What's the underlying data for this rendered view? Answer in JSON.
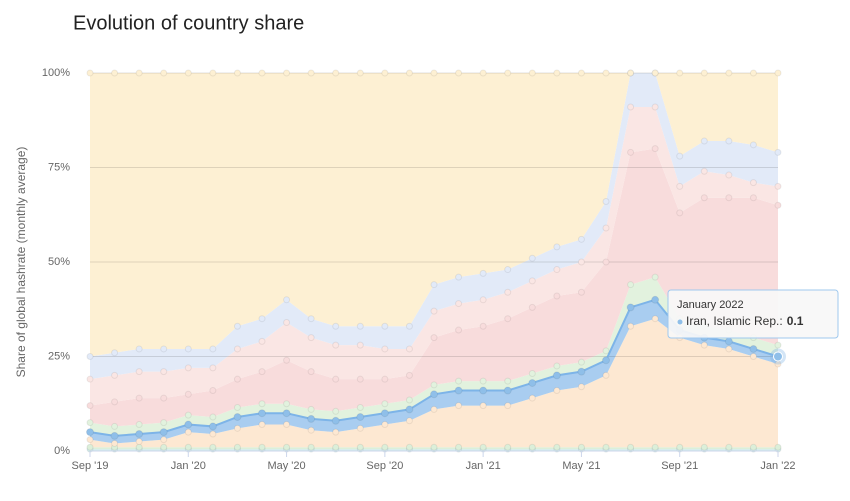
{
  "chart_data": {
    "type": "stacked-area",
    "title": "Evolution of country share",
    "ylabel": "Share of global hashrate (monthly average)",
    "categories": [
      "Sep '19",
      null,
      null,
      null,
      "Jan '20",
      null,
      null,
      null,
      "May '20",
      null,
      null,
      null,
      "Sep '20",
      null,
      null,
      null,
      "Jan '21",
      null,
      null,
      null,
      "May '21",
      null,
      null,
      null,
      "Sep '21",
      null,
      null,
      null,
      "Jan '22"
    ],
    "ylim": [
      0,
      100
    ],
    "yticks": [
      {
        "value": 0,
        "label": "0%"
      },
      {
        "value": 25,
        "label": "25%"
      },
      {
        "value": 50,
        "label": "50%"
      },
      {
        "value": 75,
        "label": "75%"
      },
      {
        "value": 100,
        "label": "100%"
      }
    ],
    "grid": true,
    "series": [
      {
        "color": "#d3ecec",
        "values": [
          0.5,
          0.5,
          0.5,
          0.5,
          0.5,
          0.5,
          0.5,
          0.5,
          0.5,
          0.5,
          0.5,
          0.5,
          0.5,
          0.5,
          0.5,
          0.5,
          0.5,
          0.5,
          0.5,
          0.5,
          0.5,
          0.5,
          0.5,
          0.5,
          0.5,
          0.5,
          0.5,
          0.5,
          0.5
        ]
      },
      {
        "color": "#dcefd9",
        "values": [
          0.5,
          0.5,
          0.5,
          0.5,
          0.5,
          0.5,
          0.5,
          0.5,
          0.5,
          0.5,
          0.5,
          0.5,
          0.5,
          0.5,
          0.5,
          0.5,
          0.5,
          0.5,
          0.5,
          0.5,
          0.5,
          0.5,
          0.5,
          0.5,
          0.5,
          0.5,
          0.5,
          0.5,
          0.5
        ]
      },
      {
        "color": "#fde8d2",
        "values": [
          2,
          1,
          1.5,
          2,
          4,
          3.5,
          5,
          6,
          6,
          4.5,
          4,
          5,
          6,
          7,
          10,
          11,
          11,
          11,
          13,
          15,
          16,
          19,
          32,
          34,
          29,
          27,
          26,
          24,
          22
        ]
      },
      {
        "color": "#a9cdf0",
        "highlight": true,
        "values": [
          2,
          2,
          2,
          2,
          2,
          2,
          3,
          3,
          3,
          3,
          3,
          3,
          3,
          3,
          4,
          4,
          4,
          4,
          4,
          4,
          4,
          4,
          5,
          5,
          2,
          2,
          2,
          2,
          2
        ]
      },
      {
        "color": "#e2f2de",
        "values": [
          2.5,
          2.5,
          2.5,
          2.5,
          2.5,
          2.5,
          2.5,
          2.5,
          2.5,
          2.5,
          2.5,
          2.5,
          2.5,
          2.5,
          2.5,
          2.5,
          2.5,
          2.5,
          2.5,
          2.5,
          2.5,
          2.5,
          6,
          6,
          3,
          3,
          3,
          3,
          3
        ]
      },
      {
        "color": "#f8dcdc",
        "values": [
          4.5,
          6.5,
          7,
          6.5,
          5.5,
          7,
          7.5,
          8.5,
          11.5,
          10,
          8.5,
          7.5,
          6.5,
          6.5,
          12.5,
          13.5,
          14.5,
          16.5,
          17.5,
          18.5,
          18.5,
          23.5,
          35,
          34,
          28,
          34,
          35,
          37,
          37
        ]
      },
      {
        "color": "#fae6e4",
        "values": [
          7,
          7,
          7,
          7,
          7,
          6,
          8,
          8,
          10,
          9,
          9,
          9,
          8,
          7,
          7,
          7,
          7,
          7,
          7,
          7,
          8,
          9,
          12,
          11,
          7,
          7,
          6,
          4,
          5
        ]
      },
      {
        "color": "#e2eaf8",
        "values": [
          6,
          6,
          6,
          6,
          5,
          5,
          6,
          6,
          6,
          5,
          5,
          5,
          6,
          6,
          7,
          7,
          7,
          6,
          6,
          6,
          6,
          7,
          9,
          9,
          8,
          8,
          9,
          10,
          9
        ]
      },
      {
        "color": "#fdf0d3",
        "values": [
          75,
          74,
          73,
          73,
          73,
          73,
          67,
          65,
          60,
          65,
          67,
          67,
          67,
          67,
          56,
          54,
          53,
          52,
          49,
          46,
          44,
          34,
          0,
          0,
          22,
          18,
          18,
          19,
          21
        ]
      }
    ],
    "tooltip": {
      "title": "January 2022",
      "label": "Iran, Islamic Rep.:",
      "value": 0.1
    }
  }
}
